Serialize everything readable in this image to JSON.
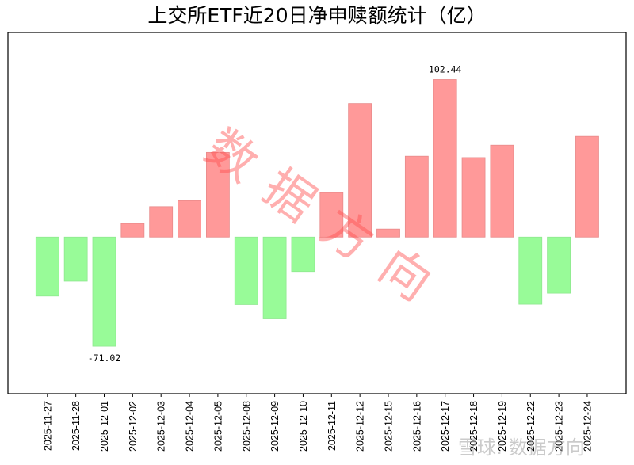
{
  "title": "上交所ETF近20日净申赎额统计（亿）",
  "watermark": "数据方向",
  "bottom_watermark": "雪球: 数据方向",
  "colors": {
    "positive": "#ff9999",
    "positive_edge": "#e88a8a",
    "negative": "#98fb98",
    "negative_edge": "#8fe88f",
    "watermark": "#ff4d4d"
  },
  "chart_data": {
    "type": "bar",
    "title": "上交所ETF近20日净申赎额统计（亿）",
    "xlabel": "",
    "ylabel": "",
    "categories": [
      "2025-11-27",
      "2025-11-28",
      "2025-12-01",
      "2025-12-02",
      "2025-12-03",
      "2025-12-04",
      "2025-12-05",
      "2025-12-08",
      "2025-12-09",
      "2025-12-10",
      "2025-12-11",
      "2025-12-12",
      "2025-12-15",
      "2025-12-16",
      "2025-12-17",
      "2025-12-18",
      "2025-12-19",
      "2025-12-22",
      "2025-12-23",
      "2025-12-24"
    ],
    "values": [
      -38.4,
      -28.7,
      -71.02,
      8.8,
      19.8,
      23.7,
      55.1,
      -43.9,
      -53.2,
      -22.4,
      28.9,
      86.9,
      5.2,
      52.6,
      102.44,
      51.7,
      59.8,
      -43.7,
      -36.5,
      65.5
    ],
    "annotations": [
      {
        "category": "2025-12-01",
        "text": "-71.02"
      },
      {
        "category": "2025-12-17",
        "text": "102.44"
      }
    ],
    "ylim": [
      -101.9,
      133.1
    ],
    "grid": false,
    "y_ticks_visible": false,
    "legend": null
  }
}
